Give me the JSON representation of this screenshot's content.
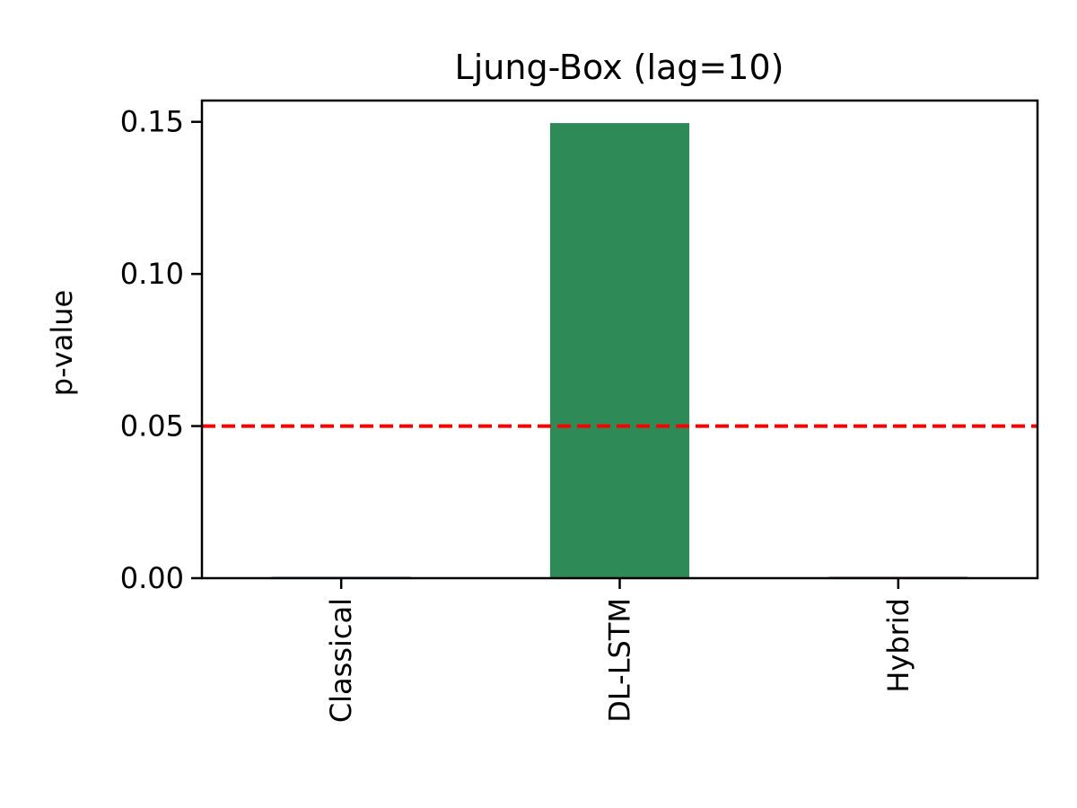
{
  "chart_data": {
    "type": "bar",
    "title": "Ljung-Box (lag=10)",
    "xlabel": "",
    "ylabel": "p-value",
    "categories": [
      "Classical",
      "DL-LSTM",
      "Hybrid"
    ],
    "values": [
      0.0003,
      0.1496,
      0.0003
    ],
    "bar_colors": [
      "#1f4e79",
      "#2e8b57",
      "#8b1a1a"
    ],
    "ylim": [
      0,
      0.157
    ],
    "yticks": [
      0.0,
      0.05,
      0.1,
      0.15
    ],
    "ytick_labels": [
      "0.00",
      "0.05",
      "0.10",
      "0.15"
    ],
    "reference_line": {
      "y": 0.05,
      "color": "#ff0000",
      "style": "dashed"
    },
    "grid": false,
    "legend": "none"
  }
}
